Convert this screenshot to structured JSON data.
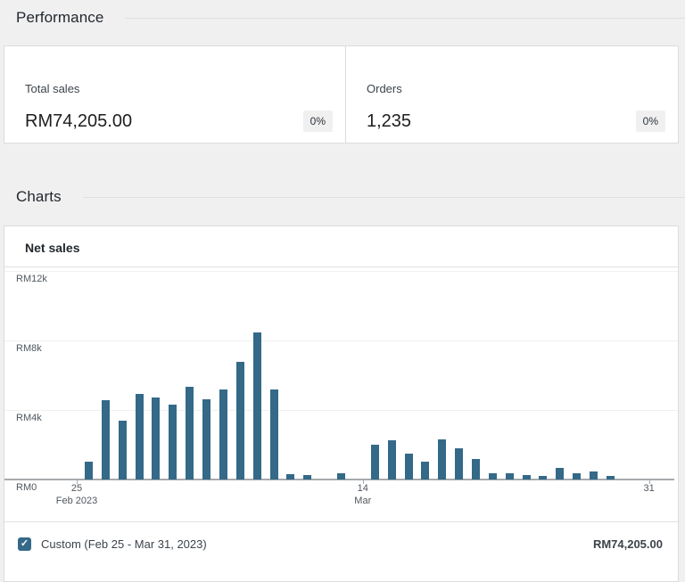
{
  "sections": {
    "performance": {
      "title": "Performance"
    },
    "charts": {
      "title": "Charts"
    }
  },
  "summary": {
    "tiles": [
      {
        "label": "Total sales",
        "value": "RM74,205.00",
        "delta": "0%"
      },
      {
        "label": "Orders",
        "value": "1,235",
        "delta": "0%"
      }
    ]
  },
  "chart": {
    "title": "Net sales",
    "legend": {
      "checked": true,
      "label": "Custom (Feb 25 - Mar 31, 2023)",
      "total": "RM74,205.00"
    }
  },
  "chart_data": {
    "type": "bar",
    "title": "Net sales",
    "currency": "RM",
    "x": [
      "Feb 25",
      "Feb 26",
      "Feb 27",
      "Feb 28",
      "Mar 1",
      "Mar 2",
      "Mar 3",
      "Mar 4",
      "Mar 5",
      "Mar 6",
      "Mar 7",
      "Mar 8",
      "Mar 9",
      "Mar 10",
      "Mar 11",
      "Mar 12",
      "Mar 13",
      "Mar 14",
      "Mar 15",
      "Mar 16",
      "Mar 17",
      "Mar 18",
      "Mar 19",
      "Mar 20",
      "Mar 21",
      "Mar 22",
      "Mar 23",
      "Mar 24",
      "Mar 25",
      "Mar 26",
      "Mar 27",
      "Mar 28",
      "Mar 29",
      "Mar 30",
      "Mar 31"
    ],
    "values": [
      1050,
      4550,
      3400,
      4900,
      4700,
      4300,
      5350,
      4600,
      5200,
      6750,
      8450,
      5200,
      300,
      250,
      0,
      350,
      0,
      2000,
      2250,
      1500,
      1000,
      2300,
      1800,
      1200,
      350,
      350,
      250,
      200,
      650,
      350,
      450,
      205,
      0,
      0,
      0
    ],
    "ylim": [
      0,
      12000
    ],
    "grid": true,
    "y_ticks": [
      {
        "value": 0,
        "label": "RM0"
      },
      {
        "value": 4000,
        "label": "RM4k"
      },
      {
        "value": 8000,
        "label": "RM8k"
      },
      {
        "value": 12000,
        "label": "RM12k"
      }
    ],
    "x_ticks": [
      {
        "index": 0,
        "label": "25",
        "sublabel": "Feb 2023"
      },
      {
        "index": 17,
        "label": "14",
        "sublabel": "Mar"
      },
      {
        "index": 34,
        "label": "31",
        "sublabel": ""
      }
    ],
    "bar_color": "#346988",
    "baseline_color": "#a7aaad",
    "gridline_color": "#f0f0f0",
    "legend_position": "bottom"
  }
}
